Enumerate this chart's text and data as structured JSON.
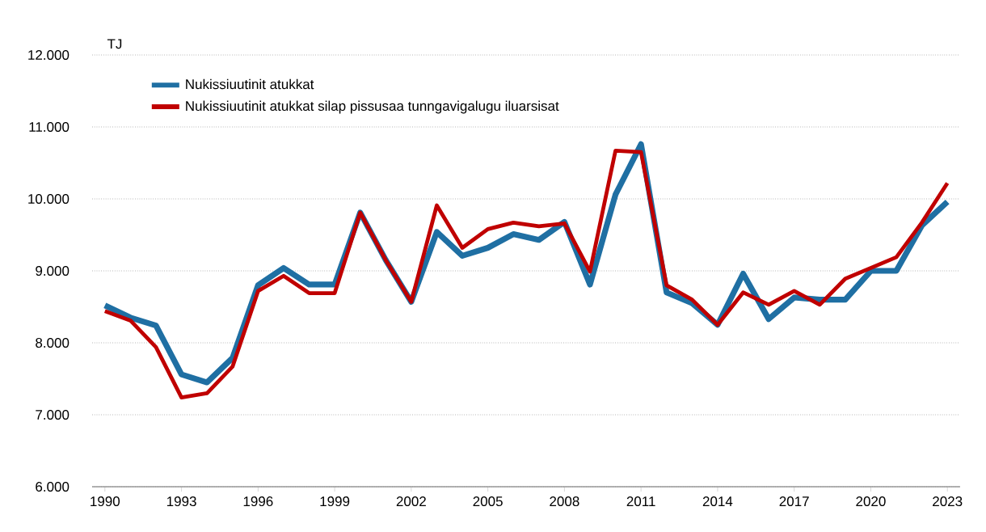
{
  "chart_data": {
    "type": "line",
    "ylabel": "TJ",
    "x": [
      1990,
      1991,
      1992,
      1993,
      1994,
      1995,
      1996,
      1997,
      1998,
      1999,
      2000,
      2001,
      2002,
      2003,
      2004,
      2005,
      2006,
      2007,
      2008,
      2009,
      2010,
      2011,
      2012,
      2013,
      2014,
      2015,
      2016,
      2017,
      2018,
      2019,
      2020,
      2021,
      2022,
      2023
    ],
    "series": [
      {
        "name": "Nukissiuutinit atukkat",
        "color": "#1f6fa3",
        "values": [
          8520,
          8350,
          8240,
          7560,
          7450,
          7790,
          8800,
          9040,
          8810,
          8810,
          9810,
          9150,
          8570,
          9540,
          9210,
          9320,
          9510,
          9430,
          9680,
          8810,
          10060,
          10760,
          8700,
          8550,
          8250,
          8960,
          8330,
          8630,
          8600,
          8600,
          9000,
          9000,
          9630,
          9960
        ]
      },
      {
        "name": "Nukissiuutinit atukkat silap pissusaa tunngavigalugu iluarsisat",
        "color": "#c00000",
        "values": [
          8440,
          8310,
          7940,
          7240,
          7300,
          7670,
          8720,
          8930,
          8690,
          8690,
          9810,
          9150,
          8570,
          9910,
          9320,
          9580,
          9670,
          9620,
          9660,
          8990,
          10670,
          10650,
          8800,
          8600,
          8250,
          8700,
          8530,
          8720,
          8530,
          8890,
          9040,
          9190,
          9670,
          10220
        ]
      }
    ],
    "xlim": [
      1989.5,
      2023.5
    ],
    "ylim": [
      6000,
      12000
    ],
    "xticks": [
      1990,
      1993,
      1996,
      1999,
      2002,
      2005,
      2008,
      2011,
      2014,
      2017,
      2020,
      2023
    ],
    "yticks": [
      {
        "value": 6000,
        "label": "6.000"
      },
      {
        "value": 7000,
        "label": "7.000"
      },
      {
        "value": 8000,
        "label": "8.000"
      },
      {
        "value": 9000,
        "label": "9.000"
      },
      {
        "value": 10000,
        "label": "10.000"
      },
      {
        "value": 11000,
        "label": "11.000"
      },
      {
        "value": 12000,
        "label": "12.000"
      }
    ],
    "grid": "y",
    "legend": "top left",
    "marker": "none",
    "line_style": "solid"
  }
}
